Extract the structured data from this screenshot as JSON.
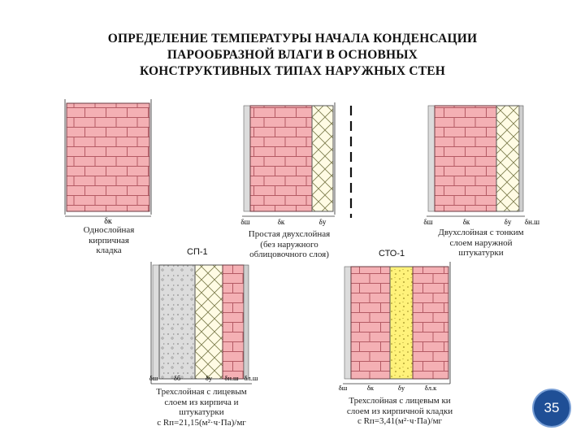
{
  "title": {
    "line1": "ОПРЕДЕЛЕНИЕ ТЕМПЕРАТУРЫ НАЧАЛА КОНДЕНСАЦИИ",
    "line2": "ПАРООБРАЗНОЙ ВЛАГИ В ОСНОВНЫХ",
    "line3": "КОНСТРУКТИВНЫХ ТИПАХ НАРУЖНЫХ СТЕН"
  },
  "walls": [
    {
      "id": "w1",
      "dims": [
        "δк"
      ],
      "caption": [
        "Однослойная",
        "кирпичная",
        "кладка"
      ]
    },
    {
      "id": "w2",
      "dims": [
        "δш",
        "δк",
        "δу"
      ],
      "caption": [
        "Простая двухслойная",
        "(без наружного",
        "облицовочного слоя)"
      ]
    },
    {
      "id": "w3",
      "dims": [
        "δш",
        "δк",
        "δу",
        "δн.ш"
      ],
      "caption": [
        "Двухслойная с тонким",
        "слоем наружной",
        "штукатурки"
      ]
    },
    {
      "id": "w4",
      "label": "СП-1",
      "dims": [
        "δш",
        "δб",
        "δу",
        "δн.ш",
        "δл.ш"
      ],
      "caption": [
        "Трехслойная с лицевым",
        "слоем из кирпича и",
        "штукатурки",
        "с Rп=21,15(м²·ч·Па)/мг"
      ]
    },
    {
      "id": "w5",
      "label": "СТО-1",
      "dims": [
        "δш",
        "δк",
        "δу",
        "δл.к"
      ],
      "caption": [
        "Трехслойная с лицевым  ки",
        "слоем из кирпичной кладки",
        "с Rп=3,41(м²·ч·Па)/мг"
      ]
    }
  ],
  "page_number": "35",
  "colors": {
    "brick": "#f4b0b4",
    "mortar": "#b45a64",
    "insulation": "#fffbe4",
    "insulation_yellow": "#fff27a",
    "concrete": "#dcdcdc",
    "badge": "#1f4f96"
  }
}
